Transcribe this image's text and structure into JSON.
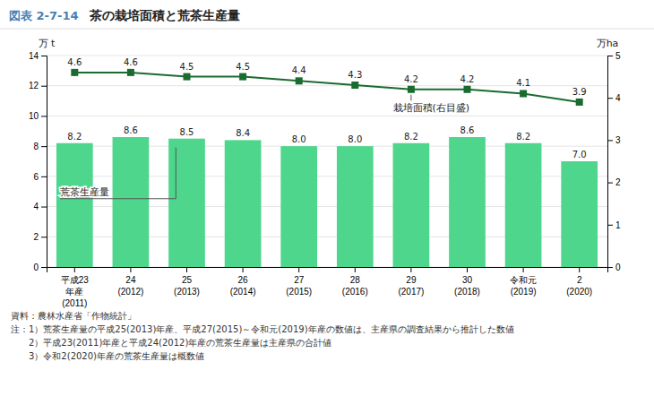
{
  "chart_data": {
    "type": "bar",
    "figure_label": "図表 2-7-14",
    "title": "茶の栽培面積と荒茶生産量",
    "categories": [
      [
        "平成23",
        "年産",
        "(2011)"
      ],
      [
        "24",
        "(2012)"
      ],
      [
        "25",
        "(2013)"
      ],
      [
        "26",
        "(2014)"
      ],
      [
        "27",
        "(2015)"
      ],
      [
        "28",
        "(2016)"
      ],
      [
        "29",
        "(2017)"
      ],
      [
        "30",
        "(2018)"
      ],
      [
        "令和元",
        "(2019)"
      ],
      [
        "2",
        "(2020)"
      ]
    ],
    "series": [
      {
        "name": "荒茶生産量",
        "type": "bar",
        "color": "#4dd68c",
        "values": [
          8.2,
          8.6,
          8.5,
          8.4,
          8.0,
          8.0,
          8.2,
          8.6,
          8.2,
          7.0
        ],
        "value_labels": [
          "8.2",
          "8.6",
          "8.5",
          "8.4",
          "8.0",
          "8.0",
          "8.2",
          "8.6",
          "8.2",
          "7.0"
        ]
      },
      {
        "name": "栽培面積(右目盛)",
        "type": "line",
        "axis": "y2",
        "color": "#1a6b30",
        "marker": "square",
        "values": [
          4.6,
          4.6,
          4.5,
          4.5,
          4.4,
          4.3,
          4.2,
          4.2,
          4.1,
          3.9
        ]
      }
    ],
    "ylabel": "万 t",
    "y2label": "万ha",
    "ylim": [
      0,
      14
    ],
    "yticks": [
      0,
      2,
      4,
      6,
      8,
      10,
      12,
      14
    ],
    "y2lim": [
      0,
      5
    ],
    "y2ticks": [
      0,
      1,
      2,
      3,
      4,
      5
    ],
    "grid": true,
    "data_labels": true,
    "source": "資料：農林水産省「作物統計」",
    "notes": [
      "注：1）荒茶生産量の平成25(2013)年産、平成27(2015)～令和元(2019)年産の数値は、主産県の調査結果から推計した数値",
      "　　2）平成23(2011)年産と平成24(2012)年産の荒茶生産量は主産県の合計値",
      "　　3）令和2(2020)年産の荒茶生産量は概数値"
    ]
  }
}
